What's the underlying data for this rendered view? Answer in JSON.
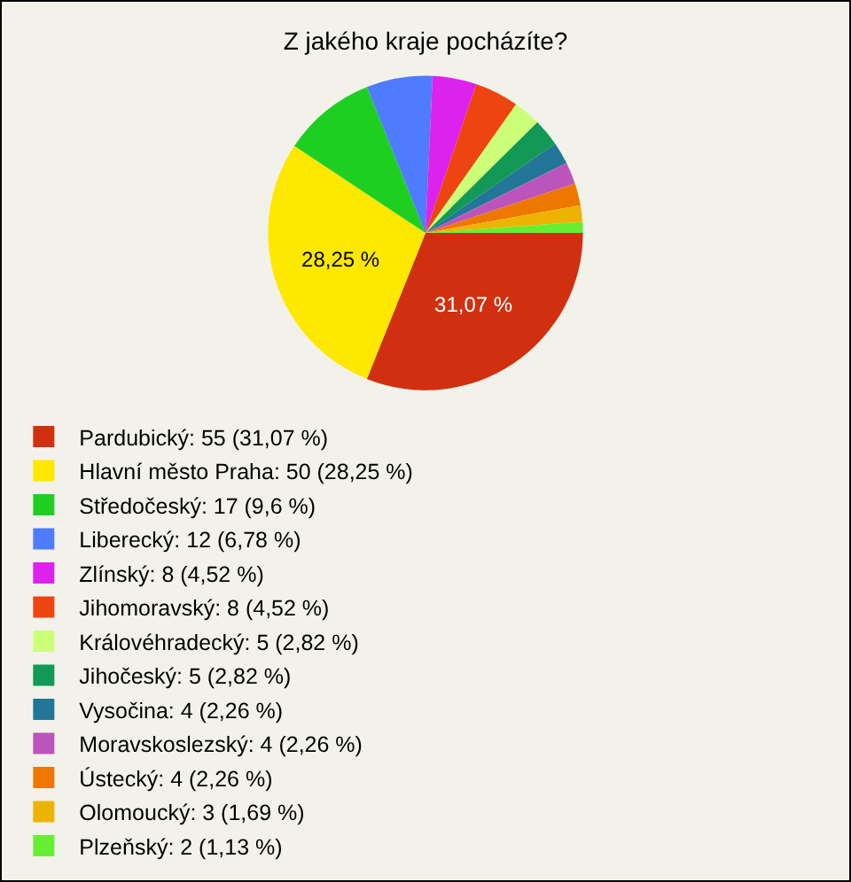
{
  "chart_data": {
    "type": "pie",
    "title": "Z jakého kraje pocházíte?",
    "categories": [
      "Pardubický: 55 (31,07 %)",
      "Hlavní město Praha: 50 (28,25 %)",
      "Středočeský: 17 (9,6 %)",
      "Liberecký: 12 (6,78 %)",
      "Zlínský: 8 (4,52 %)",
      "Jihomoravský: 8 (4,52 %)",
      "Královéhradecký: 5 (2,82 %)",
      "Jihočeský: 5 (2,82 %)",
      "Vysočina: 4 (2,26 %)",
      "Moravskoslezský: 4 (2,26 %)",
      "Ústecký: 4 (2,26 %)",
      "Olomoucký: 3 (1,69 %)",
      "Plzeňský: 2 (1,13 %)"
    ],
    "values": [
      31.07,
      28.25,
      9.6,
      6.78,
      4.52,
      4.52,
      2.82,
      2.82,
      2.26,
      2.26,
      2.26,
      1.69,
      1.13
    ],
    "colors": [
      "#d0300f",
      "#ffe800",
      "#1ecf22",
      "#4f7cff",
      "#dd22ee",
      "#ee4411",
      "#ccff77",
      "#119955",
      "#227799",
      "#bb55bb",
      "#ee7700",
      "#eeb300",
      "#66ee33"
    ],
    "value_labels": [
      "31,07 %",
      "28,25 %",
      null,
      null,
      null,
      null,
      null,
      null,
      null,
      null,
      null,
      null,
      null
    ],
    "legend": "bottom"
  }
}
